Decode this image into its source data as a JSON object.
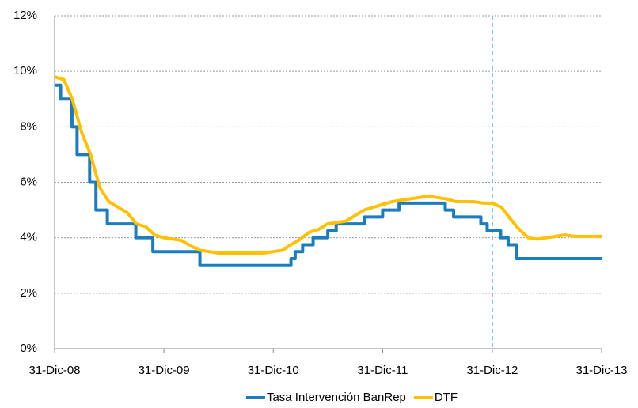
{
  "chart_data": {
    "type": "line",
    "xticks": [
      {
        "value": "2008-12-31",
        "label": "31-Dic-08"
      },
      {
        "value": "2009-12-31",
        "label": "31-Dic-09"
      },
      {
        "value": "2010-12-31",
        "label": "31-Dic-10"
      },
      {
        "value": "2011-12-31",
        "label": "31-Dic-11"
      },
      {
        "value": "2012-12-31",
        "label": "31-Dic-12"
      },
      {
        "value": "2013-12-31",
        "label": "31-Dic-13"
      }
    ],
    "xlim": [
      "2008-12-31",
      "2013-12-31"
    ],
    "ylim": [
      0,
      12
    ],
    "yticks": [
      {
        "value": 0,
        "label": "0%"
      },
      {
        "value": 2,
        "label": "2%"
      },
      {
        "value": 4,
        "label": "4%"
      },
      {
        "value": 6,
        "label": "6%"
      },
      {
        "value": 8,
        "label": "8%"
      },
      {
        "value": 10,
        "label": "10%"
      },
      {
        "value": 12,
        "label": "12%"
      }
    ],
    "grid": true,
    "vline": "2012-12-31",
    "vline_color": "#29a9e0",
    "legend": "bottom",
    "series": [
      {
        "name": "Tasa Intervención BanRep",
        "color": "#1b7dc0",
        "step": "after",
        "x": [
          "2008-12-31",
          "2009-01-20",
          "2009-02-27",
          "2009-03-16",
          "2009-04-27",
          "2009-05-18",
          "2009-06-25",
          "2009-09-28",
          "2009-11-24",
          "2010-04-30",
          "2011-02-28",
          "2011-03-14",
          "2011-04-08",
          "2011-05-13",
          "2011-07-01",
          "2011-07-29",
          "2011-11-01",
          "2011-12-31",
          "2012-02-24",
          "2012-07-27",
          "2012-08-24",
          "2012-11-23",
          "2012-12-14",
          "2013-01-28",
          "2013-02-22",
          "2013-03-22",
          "2013-12-31"
        ],
        "values": [
          9.5,
          9.0,
          8.0,
          7.0,
          6.0,
          5.0,
          4.5,
          4.0,
          3.5,
          3.0,
          3.25,
          3.5,
          3.75,
          4.0,
          4.25,
          4.5,
          4.75,
          5.0,
          5.25,
          5.0,
          4.75,
          4.5,
          4.25,
          4.0,
          3.75,
          3.25,
          3.25
        ]
      },
      {
        "name": "DTF",
        "color": "#ffc000",
        "x": [
          "2008-12-31",
          "2009-01-31",
          "2009-02-28",
          "2009-03-31",
          "2009-04-30",
          "2009-05-31",
          "2009-06-30",
          "2009-07-31",
          "2009-08-31",
          "2009-09-30",
          "2009-10-31",
          "2009-11-30",
          "2009-12-31",
          "2010-01-31",
          "2010-02-28",
          "2010-03-31",
          "2010-04-30",
          "2010-05-31",
          "2010-06-30",
          "2010-07-31",
          "2010-08-31",
          "2010-09-30",
          "2010-10-31",
          "2010-11-30",
          "2010-12-31",
          "2011-01-31",
          "2011-02-28",
          "2011-03-31",
          "2011-04-30",
          "2011-05-31",
          "2011-06-30",
          "2011-07-31",
          "2011-08-31",
          "2011-09-30",
          "2011-10-31",
          "2011-11-30",
          "2011-12-31",
          "2012-01-31",
          "2012-02-29",
          "2012-03-31",
          "2012-04-30",
          "2012-05-31",
          "2012-06-30",
          "2012-07-31",
          "2012-08-31",
          "2012-09-30",
          "2012-10-31",
          "2012-11-30",
          "2012-12-31",
          "2013-01-31",
          "2013-02-28",
          "2013-03-31",
          "2013-04-30",
          "2013-05-31",
          "2013-06-30",
          "2013-07-31",
          "2013-08-31",
          "2013-09-30",
          "2013-10-31",
          "2013-11-30",
          "2013-12-31"
        ],
        "values": [
          9.8,
          9.7,
          9.0,
          7.8,
          7.0,
          5.8,
          5.3,
          5.1,
          4.9,
          4.5,
          4.4,
          4.1,
          4.0,
          3.95,
          3.9,
          3.7,
          3.55,
          3.5,
          3.45,
          3.45,
          3.45,
          3.45,
          3.45,
          3.45,
          3.5,
          3.55,
          3.75,
          3.95,
          4.2,
          4.3,
          4.5,
          4.55,
          4.6,
          4.8,
          5.0,
          5.1,
          5.2,
          5.3,
          5.35,
          5.4,
          5.45,
          5.5,
          5.45,
          5.4,
          5.3,
          5.3,
          5.3,
          5.25,
          5.25,
          5.1,
          4.7,
          4.3,
          4.0,
          3.95,
          4.0,
          4.05,
          4.1,
          4.05,
          4.05,
          4.05,
          4.05
        ]
      }
    ]
  }
}
